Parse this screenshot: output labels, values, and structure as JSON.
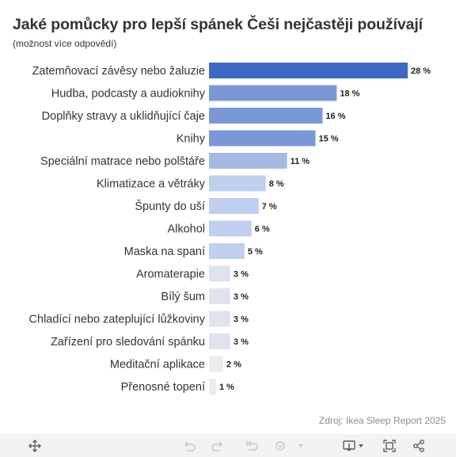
{
  "title": "Jaké pomůcky pro lepší spánek Češi nejčastěji používají",
  "subtitle": "(možnost více odpovědí)",
  "source": "Zdroj: Ikea Sleep Report 2025",
  "chart_data": {
    "type": "bar",
    "orientation": "horizontal",
    "categories": [
      "Zatemňovací závěsy nebo žaluzie",
      "Hudba, podcasty a audioknihy",
      "Doplňky stravy a uklidňující čaje",
      "Knihy",
      "Speciální matrace nebo polštáře",
      "Klimatizace a větráky",
      "Špunty do uší",
      "Alkohol",
      "Maska na spaní",
      "Aromaterapie",
      "Bílý šum",
      "Chladící nebo zateplující lůžkoviny",
      "Zařízení pro sledování spánku",
      "Meditační aplikace",
      "Přenosné topení"
    ],
    "values": [
      28,
      18,
      16,
      15,
      11,
      8,
      7,
      6,
      5,
      3,
      3,
      3,
      3,
      2,
      1
    ],
    "value_labels": [
      "28 %",
      "18 %",
      "16 %",
      "15 %",
      "11 %",
      "8 %",
      "7 %",
      "6 %",
      "5 %",
      "3 %",
      "3 %",
      "3 %",
      "3 %",
      "2 %",
      "1 %"
    ],
    "unit": "%",
    "xlim": [
      0,
      28
    ],
    "grid": false,
    "legend": "none",
    "colors": [
      "#3d69c4",
      "#7b98d6",
      "#7b98d6",
      "#7b98d6",
      "#a6b9e3",
      "#c1cfee",
      "#c1cfee",
      "#c1cfee",
      "#c1cfee",
      "#dfe3ee",
      "#dfe3ee",
      "#dfe3ee",
      "#dfe3ee",
      "#ececef",
      "#ececef"
    ]
  },
  "toolbar": {
    "icons": [
      "move-icon",
      "undo-icon",
      "redo-icon",
      "revert-icon",
      "dropdown-icon",
      "download-icon",
      "fullscreen-icon",
      "share-icon"
    ]
  }
}
